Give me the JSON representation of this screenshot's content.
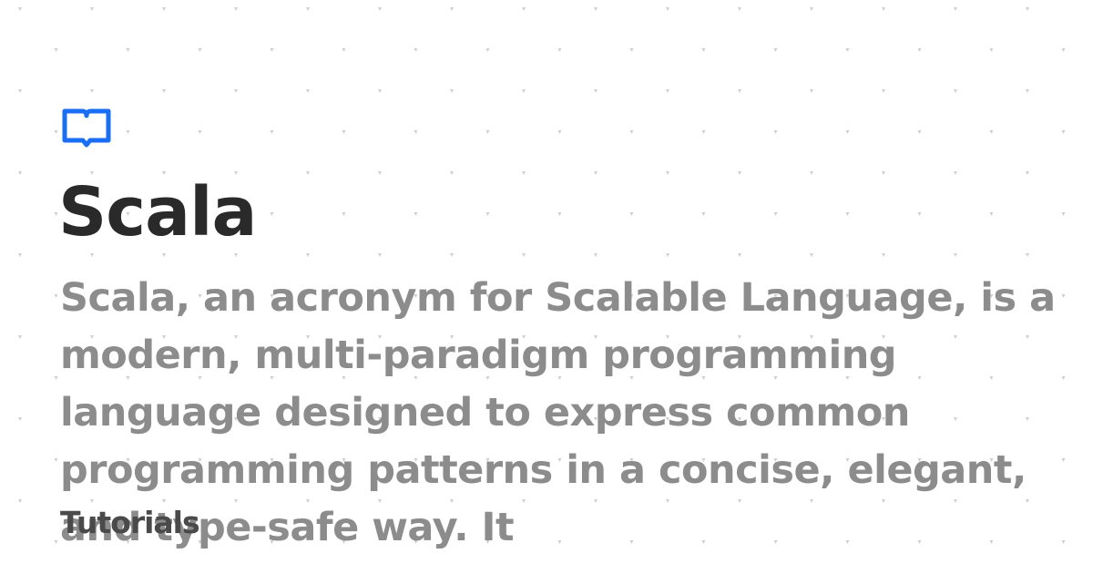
{
  "header": {
    "title": "Scala",
    "description": "Scala, an acronym for Scalable Language, is a modern, multi-paradigm programming language designed to express common programming patterns in a concise, elegant, and type-safe way. It"
  },
  "footer": {
    "label": "Tutorials"
  }
}
